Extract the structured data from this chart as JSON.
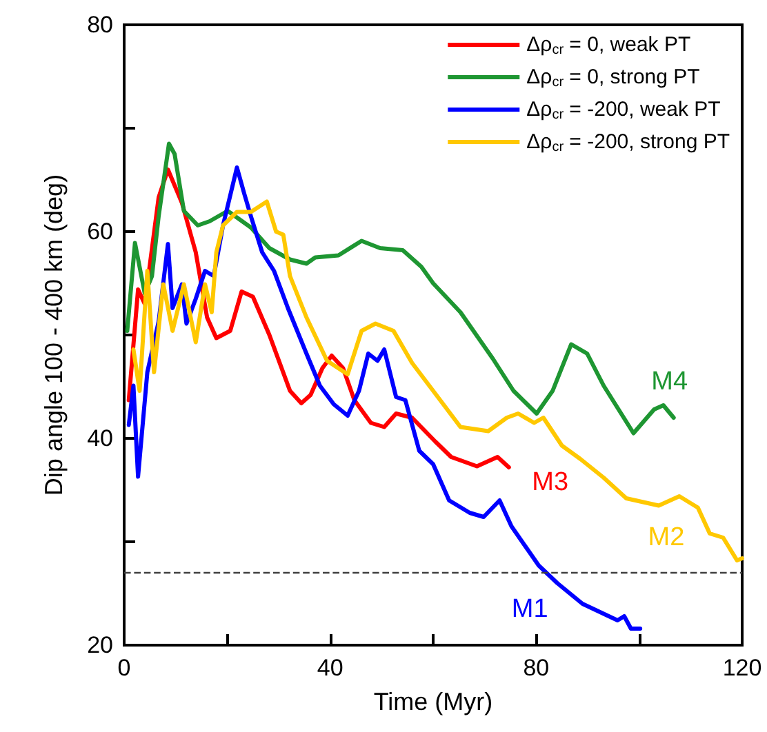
{
  "chart_data": {
    "type": "line",
    "xlabel": "Time (Myr)",
    "ylabel": "Dip angle 100 - 400 km (deg)",
    "xlim": [
      0,
      120
    ],
    "xticks": [
      0,
      {
        "value": 20,
        "label": null
      },
      40,
      {
        "value": 60,
        "label": null
      },
      80,
      {
        "value": 100,
        "label": null
      },
      120
    ],
    "ylim": [
      20,
      80
    ],
    "yticks": [
      20,
      {
        "value": 30,
        "label": null
      },
      40,
      {
        "value": 50,
        "label": null
      },
      60,
      {
        "value": 70,
        "label": null
      },
      80
    ],
    "grid": false,
    "legend": "top right",
    "marker": "none",
    "line_style": "solid",
    "series": [
      {
        "name": "Δρ$_{cr}$ = 0, weak PT",
        "color": "#ff0000",
        "x": [
          0.9,
          2.7,
          4,
          6.7,
          8.5,
          11.2,
          13.9,
          16.1,
          17.9,
          20.6,
          22.8,
          25,
          28.2,
          32.2,
          34.4,
          36.2,
          38.5,
          40.3,
          42.5,
          44.7,
          47.9,
          50.5,
          52.8,
          55.9,
          60.4,
          63.5,
          68.5,
          72.5,
          74.7
        ],
        "values": [
          43.7,
          54.4,
          53,
          63.3,
          66,
          62.8,
          58,
          51.7,
          49.7,
          50.4,
          54.2,
          53.7,
          50,
          44.6,
          43.4,
          44.2,
          46.8,
          48,
          46.8,
          43.7,
          41.5,
          41.1,
          42.4,
          42,
          39.7,
          38.2,
          37.3,
          38.2,
          37.2
        ]
      },
      {
        "name": "Δρ$_{cr}$ = 0, strong PT",
        "color": "#1e9632",
        "x": [
          0.6,
          2.1,
          4,
          5.4,
          6.7,
          8.7,
          9.8,
          11.6,
          14.3,
          16.6,
          20.1,
          24.6,
          28.2,
          32.2,
          35.4,
          37.1,
          41.6,
          46.1,
          49.7,
          54.1,
          57.7,
          60,
          65.3,
          71.6,
          75.6,
          80.1,
          83.2,
          86.8,
          89.9,
          93.1,
          98.9,
          102.9,
          104.7,
          106.7
        ],
        "values": [
          50.4,
          58.9,
          54,
          55.7,
          61.5,
          68.5,
          67.5,
          62,
          60.6,
          61,
          62,
          60.4,
          58.4,
          57.3,
          56.9,
          57.5,
          57.7,
          59.1,
          58.4,
          58.2,
          56.6,
          55,
          52.2,
          47.7,
          44.6,
          42.4,
          44.6,
          49.1,
          48.2,
          45.1,
          40.5,
          42.8,
          43.2,
          42
        ]
      },
      {
        "name": "Δρ$_{cr}$ = -200, weak PT",
        "color": "#0000ff",
        "x": [
          0.9,
          1.8,
          2.7,
          4.5,
          6.7,
          8.5,
          9.4,
          11.2,
          12.1,
          13.9,
          15.7,
          17.4,
          19.2,
          21.9,
          23.3,
          24.6,
          26.8,
          29.1,
          31.8,
          35.4,
          38,
          40.7,
          43.4,
          45.6,
          47.4,
          49.2,
          50.5,
          52.8,
          54.6,
          57.3,
          60,
          63.1,
          67.1,
          69.8,
          72.9,
          75.2,
          80.5,
          84.1,
          89,
          95.8,
          97.1,
          98.4,
          100.2
        ],
        "values": [
          41.3,
          45.1,
          36.3,
          46.4,
          51.3,
          58.8,
          52.6,
          54.9,
          51.1,
          53.5,
          56.2,
          55.7,
          60.6,
          66.2,
          63.7,
          61.5,
          58,
          56.2,
          52.6,
          48.2,
          45.1,
          43.3,
          42.2,
          44.6,
          48.2,
          47.5,
          48.6,
          44,
          43.7,
          38.8,
          37.5,
          34,
          32.8,
          32.4,
          34,
          31.5,
          27.7,
          26,
          24,
          22.4,
          22.8,
          21.6,
          21.6
        ]
      },
      {
        "name": "Δρ$_{cr}$ = -200, strong PT",
        "color": "#ffc800",
        "x": [
          1.8,
          3,
          4.5,
          5.8,
          7.6,
          9.4,
          11.6,
          13.9,
          15.7,
          17,
          17.9,
          19.2,
          21.9,
          24.6,
          27.7,
          29.5,
          30.9,
          32.2,
          35.4,
          39.4,
          43.4,
          46.1,
          48.8,
          52.3,
          55.9,
          60,
          65.3,
          70.7,
          74.3,
          76.5,
          79.6,
          81.4,
          85,
          88.6,
          93.1,
          97.5,
          103.8,
          107.8,
          111.4,
          113.7,
          116.3,
          119,
          120
        ],
        "values": [
          48.6,
          44.6,
          56.2,
          46.4,
          54.9,
          50.4,
          54.9,
          49.3,
          54.9,
          52.2,
          58,
          60.6,
          61.9,
          61.9,
          62.9,
          60,
          59.7,
          55.7,
          51.7,
          47.5,
          46.2,
          50.4,
          51.1,
          50.4,
          47.3,
          44.6,
          41.1,
          40.7,
          42,
          42.4,
          41.5,
          42,
          39.3,
          38,
          36.2,
          34.2,
          33.5,
          34.4,
          33.3,
          30.8,
          30.4,
          28.2,
          28.4
        ]
      }
    ],
    "ref_lines": [
      {
        "axis": "y",
        "value": 27,
        "color": "#404040",
        "line_style": "dashed"
      }
    ],
    "annotations": [
      "M3",
      "M4",
      "M1",
      "M2"
    ]
  }
}
